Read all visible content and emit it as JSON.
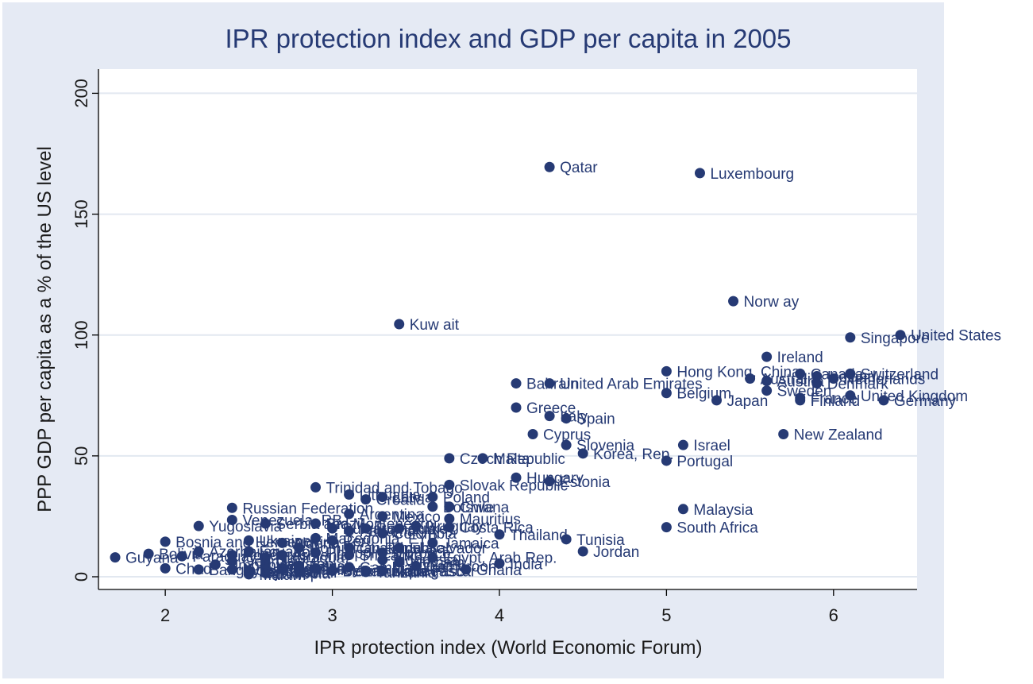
{
  "chart_data": {
    "type": "scatter",
    "title": "IPR protection index and GDP per capita in 2005",
    "xlabel": "IPR protection index (World Economic Forum)",
    "ylabel": "PPP GDP per capita as a % of the US level",
    "xlim": [
      1.6,
      6.5
    ],
    "ylim": [
      0,
      200
    ],
    "xticks": [
      "2",
      "3",
      "4",
      "5",
      "6"
    ],
    "yticks": [
      "0",
      "50",
      "100",
      "150",
      "200"
    ],
    "grid": "horizontal",
    "colors": {
      "frame": "#e5eaf4",
      "plot": "#ffffff",
      "marker": "#263a74",
      "label": "#263a74",
      "gridline": "#e2e8f0",
      "text": "#1a1a1a"
    },
    "points": [
      {
        "label": "Qatar",
        "x": 4.3,
        "y": 169.5
      },
      {
        "label": "Luxembourg",
        "x": 5.2,
        "y": 167
      },
      {
        "label": "Norw ay",
        "x": 5.4,
        "y": 114
      },
      {
        "label": "Kuw ait",
        "x": 3.4,
        "y": 104.5
      },
      {
        "label": "United States",
        "x": 6.4,
        "y": 100
      },
      {
        "label": "Singapore",
        "x": 6.1,
        "y": 99
      },
      {
        "label": "Ireland",
        "x": 5.6,
        "y": 91
      },
      {
        "label": "Hong Kong, China",
        "x": 5.0,
        "y": 85
      },
      {
        "label": "Canada",
        "x": 5.8,
        "y": 84
      },
      {
        "label": "Iceland",
        "x": 5.9,
        "y": 83
      },
      {
        "label": "Switzerland",
        "x": 6.1,
        "y": 84
      },
      {
        "label": "Netherlands",
        "x": 6.0,
        "y": 82
      },
      {
        "label": "Australia",
        "x": 5.5,
        "y": 82
      },
      {
        "label": "Austria",
        "x": 5.6,
        "y": 81
      },
      {
        "label": "Denmark",
        "x": 5.9,
        "y": 80
      },
      {
        "label": "Bahrain",
        "x": 4.1,
        "y": 80
      },
      {
        "label": "United Arab Emirates",
        "x": 4.3,
        "y": 80
      },
      {
        "label": "Sweden",
        "x": 5.6,
        "y": 77
      },
      {
        "label": "Belgium",
        "x": 5.0,
        "y": 76
      },
      {
        "label": "United Kingdom",
        "x": 6.1,
        "y": 75
      },
      {
        "label": "France",
        "x": 5.8,
        "y": 74
      },
      {
        "label": "Finland",
        "x": 5.8,
        "y": 73
      },
      {
        "label": "Japan",
        "x": 5.3,
        "y": 73
      },
      {
        "label": "Germany",
        "x": 6.3,
        "y": 73
      },
      {
        "label": "Greece",
        "x": 4.1,
        "y": 70
      },
      {
        "label": "Italy",
        "x": 4.3,
        "y": 66.5
      },
      {
        "label": "Spain",
        "x": 4.4,
        "y": 65.5
      },
      {
        "label": "Cyprus",
        "x": 4.2,
        "y": 59
      },
      {
        "label": "New Zealand",
        "x": 5.7,
        "y": 59
      },
      {
        "label": "Slovenia",
        "x": 4.4,
        "y": 54.5
      },
      {
        "label": "Israel",
        "x": 5.1,
        "y": 54.5
      },
      {
        "label": "Korea, Rep.",
        "x": 4.5,
        "y": 51
      },
      {
        "label": "Czech Republic",
        "x": 3.7,
        "y": 49
      },
      {
        "label": "Malta",
        "x": 3.9,
        "y": 49
      },
      {
        "label": "Portugal",
        "x": 5.0,
        "y": 48
      },
      {
        "label": "Hungary",
        "x": 4.1,
        "y": 41
      },
      {
        "label": "Estonia",
        "x": 4.3,
        "y": 39.5
      },
      {
        "label": "Slovak Republic",
        "x": 3.7,
        "y": 38
      },
      {
        "label": "Trinidad and Tobago",
        "x": 2.9,
        "y": 37
      },
      {
        "label": "Lithuania",
        "x": 3.1,
        "y": 34
      },
      {
        "label": "Croatia",
        "x": 3.2,
        "y": 32
      },
      {
        "label": "Latvia",
        "x": 3.3,
        "y": 33
      },
      {
        "label": "Poland",
        "x": 3.6,
        "y": 33
      },
      {
        "label": "Botswana",
        "x": 3.6,
        "y": 29
      },
      {
        "label": "Chile",
        "x": 3.7,
        "y": 29
      },
      {
        "label": "Russian Federation",
        "x": 2.4,
        "y": 28.5
      },
      {
        "label": "Malaysia",
        "x": 5.1,
        "y": 28
      },
      {
        "label": "Argentina",
        "x": 3.1,
        "y": 26
      },
      {
        "label": "Mexico",
        "x": 3.3,
        "y": 25
      },
      {
        "label": "Mauritius",
        "x": 3.7,
        "y": 24
      },
      {
        "label": "Venezuela, RB",
        "x": 2.4,
        "y": 23.5
      },
      {
        "label": "Brazil",
        "x": 2.9,
        "y": 22
      },
      {
        "label": "Costa Rica",
        "x": 3.7,
        "y": 20.5
      },
      {
        "label": "Yugoslavia",
        "x": 2.2,
        "y": 21
      },
      {
        "label": "South Africa",
        "x": 5.0,
        "y": 20.5
      },
      {
        "label": "Panama",
        "x": 3.1,
        "y": 19
      },
      {
        "label": "Colombia",
        "x": 3.3,
        "y": 18
      },
      {
        "label": "Thailand",
        "x": 4.0,
        "y": 17.5
      },
      {
        "label": "Tunisia",
        "x": 4.4,
        "y": 15.5
      },
      {
        "label": "Peru",
        "x": 3.0,
        "y": 15
      },
      {
        "label": "Ukraine",
        "x": 2.5,
        "y": 15
      },
      {
        "label": "Jamaica",
        "x": 3.6,
        "y": 14
      },
      {
        "label": "Bosnia and Herzegovina",
        "x": 2.0,
        "y": 14.5
      },
      {
        "label": "El Salvador",
        "x": 3.4,
        "y": 12
      },
      {
        "label": "Guatemala",
        "x": 3.1,
        "y": 12
      },
      {
        "label": "Dominican Republic",
        "x": 2.8,
        "y": 12
      },
      {
        "label": "Jordan",
        "x": 4.5,
        "y": 10.5
      },
      {
        "label": "Egypt, Arab Rep.",
        "x": 3.6,
        "y": 8
      },
      {
        "label": "Indonesia",
        "x": 3.3,
        "y": 7
      },
      {
        "label": "India",
        "x": 4.0,
        "y": 5.5
      },
      {
        "label": "Guyana",
        "x": 1.7,
        "y": 8
      },
      {
        "label": "Paraguay",
        "x": 2.1,
        "y": 8.5
      },
      {
        "label": "Bolivia",
        "x": 1.9,
        "y": 9.5
      },
      {
        "label": "Honduras",
        "x": 2.4,
        "y": 9
      },
      {
        "label": "Nicaragua",
        "x": 2.6,
        "y": 8
      },
      {
        "label": "Cameroon",
        "x": 3.5,
        "y": 4.5
      },
      {
        "label": "Ghana",
        "x": 3.8,
        "y": 3
      },
      {
        "label": "Madagascar",
        "x": 3.3,
        "y": 2.5
      },
      {
        "label": "Chad",
        "x": 2.0,
        "y": 3.5
      },
      {
        "label": "Bangladesh",
        "x": 2.2,
        "y": 3
      },
      {
        "label": "Mozambique",
        "x": 3.0,
        "y": 2.5
      },
      {
        "label": "Zambia",
        "x": 2.5,
        "y": 2.5
      },
      {
        "label": "Ethiopia",
        "x": 2.6,
        "y": 1.5
      },
      {
        "label": "Mali",
        "x": 2.8,
        "y": 2
      },
      {
        "label": "Kenya",
        "x": 2.9,
        "y": 3.5
      },
      {
        "label": "Uganda",
        "x": 2.7,
        "y": 3.5
      },
      {
        "label": "Tanzania",
        "x": 3.2,
        "y": 2
      },
      {
        "label": "Malawi",
        "x": 2.5,
        "y": 1
      },
      {
        "label": "Nepal",
        "x": 2.8,
        "y": 4.5
      },
      {
        "label": "Pakistan",
        "x": 2.6,
        "y": 5.5
      },
      {
        "label": "Philippines",
        "x": 2.9,
        "y": 10
      },
      {
        "label": "Sri Lanka",
        "x": 3.1,
        "y": 9
      },
      {
        "label": "Morocco",
        "x": 3.3,
        "y": 10
      },
      {
        "label": "Algeria",
        "x": 2.7,
        "y": 14
      },
      {
        "label": "Ecuador",
        "x": 2.5,
        "y": 10.5
      },
      {
        "label": "Georgia",
        "x": 2.4,
        "y": 6.5
      },
      {
        "label": "Kyrgyz Republic",
        "x": 2.4,
        "y": 3
      },
      {
        "label": "Tajikistan",
        "x": 2.5,
        "y": 2
      },
      {
        "label": "Mongolia",
        "x": 2.6,
        "y": 4
      },
      {
        "label": "Vietnam",
        "x": 3.4,
        "y": 6
      },
      {
        "label": "Zimbabwe",
        "x": 2.3,
        "y": 5
      },
      {
        "label": "Benin",
        "x": 3.0,
        "y": 2.5
      },
      {
        "label": "Gambia, The",
        "x": 3.1,
        "y": 4
      },
      {
        "label": "Burkina Faso",
        "x": 3.2,
        "y": 2.5
      },
      {
        "label": "Armenia",
        "x": 2.7,
        "y": 9
      },
      {
        "label": "Azerbaijan",
        "x": 2.2,
        "y": 10.5
      },
      {
        "label": "Macedonia, FYR",
        "x": 2.9,
        "y": 16
      },
      {
        "label": "Bulgaria",
        "x": 3.0,
        "y": 20
      },
      {
        "label": "Romania",
        "x": 3.2,
        "y": 20
      },
      {
        "label": "Turkey",
        "x": 3.4,
        "y": 20
      },
      {
        "label": "Uruguay",
        "x": 3.5,
        "y": 21
      },
      {
        "label": "Serbia and Montenegro",
        "x": 2.6,
        "y": 22
      }
    ]
  }
}
